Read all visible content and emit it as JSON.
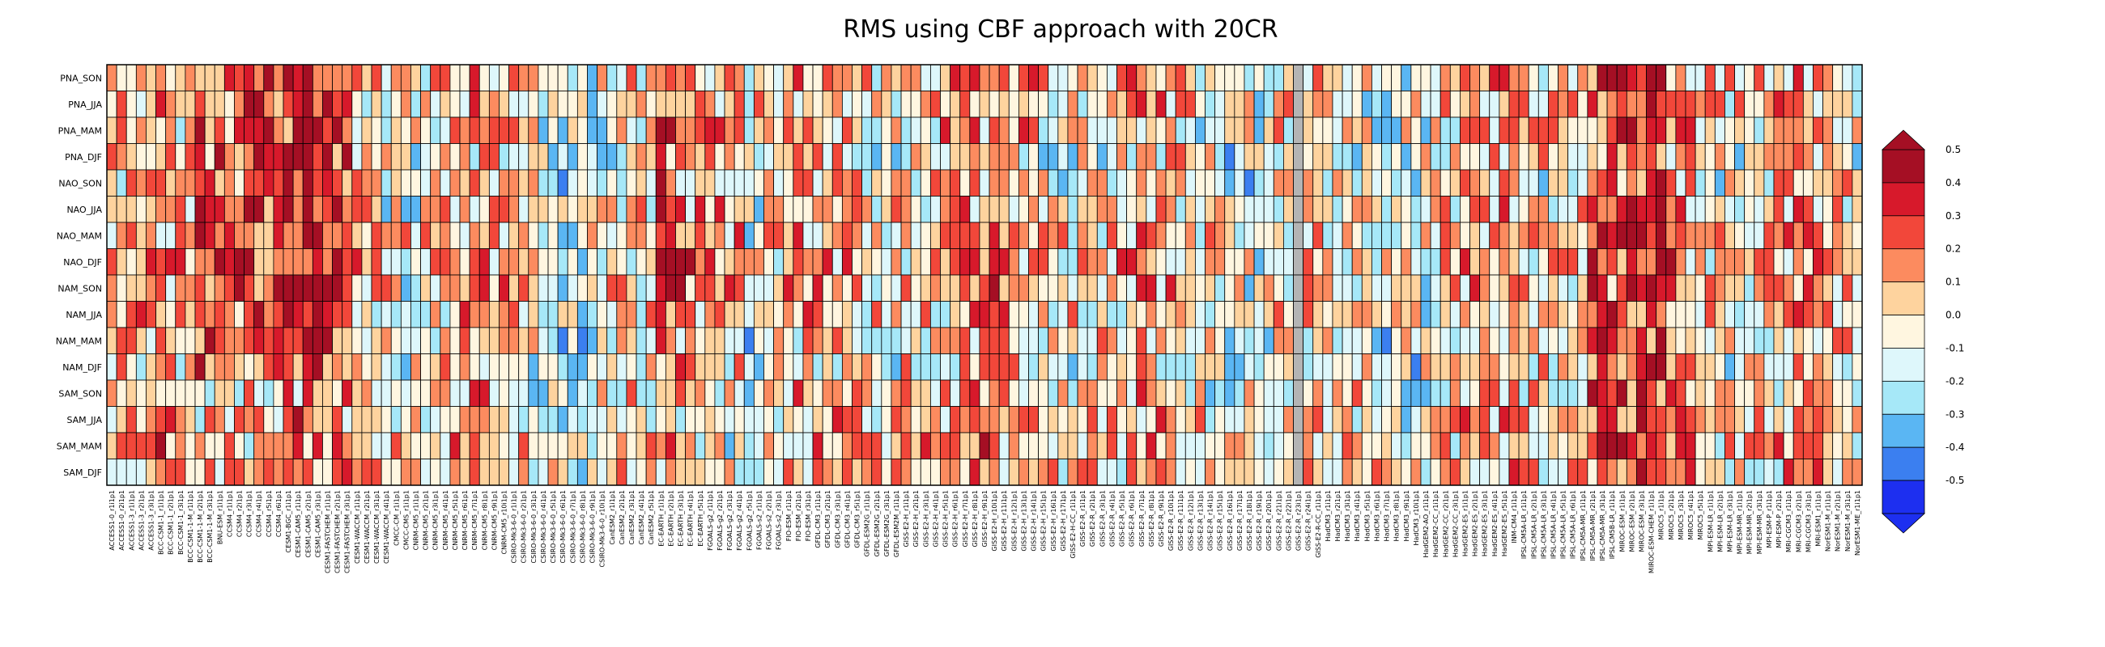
{
  "chart_data": {
    "type": "heatmap",
    "title": "RMS using CBF approach with 20CR",
    "rows": [
      "PNA_SON",
      "PNA_JJA",
      "PNA_MAM",
      "PNA_DJF",
      "NAO_SON",
      "NAO_JJA",
      "NAO_MAM",
      "NAO_DJF",
      "NAM_SON",
      "NAM_JJA",
      "NAM_MAM",
      "NAM_DJF",
      "SAM_SON",
      "SAM_JJA",
      "SAM_MAM",
      "SAM_DJF"
    ],
    "column_groups": [
      {
        "prefix": "ACCESS1-0_",
        "n": 2
      },
      {
        "prefix": "ACCESS1-3_",
        "n": 3
      },
      {
        "prefix": "BCC-CSM1-1_",
        "n": 3
      },
      {
        "prefix": "BCC-CSM1-1-M_",
        "n": 3
      },
      {
        "prefix": "BNU-ESM_",
        "n": 1
      },
      {
        "prefix": "CCSM4_",
        "n": 6
      },
      {
        "prefix": "CESM1-BGC_",
        "n": 1
      },
      {
        "prefix": "CESM1-CAM5_",
        "n": 3
      },
      {
        "prefix": "CESM1-FASTCHEM_",
        "n": 3
      },
      {
        "prefix": "CESM1-WACCM_",
        "n": 4
      },
      {
        "prefix": "CMCC-CM_",
        "n": 1
      },
      {
        "prefix": "CMCC-CMS_",
        "n": 1
      },
      {
        "prefix": "CNRM-CM5_",
        "n": 10
      },
      {
        "prefix": "CSIRO-Mk3-6-0_",
        "n": 10
      },
      {
        "prefix": "CanESM2_",
        "n": 5
      },
      {
        "prefix": "EC-EARTH_",
        "n": 5
      },
      {
        "prefix": "FGOALS-g2_",
        "n": 5
      },
      {
        "prefix": "FGOALS-s2_",
        "n": 3
      },
      {
        "prefix": "FIO-ESM_",
        "n": 3
      },
      {
        "prefix": "GFDL-CM3_",
        "n": 5
      },
      {
        "prefix": "GFDL-ESM2G_",
        "n": 3
      },
      {
        "prefix": "GFDL-ESM2M_",
        "n": 1
      },
      {
        "prefix": "GISS-E2-H_",
        "n": 17
      },
      {
        "prefix": "GISS-E2-H-CC_",
        "n": 1
      },
      {
        "prefix": "GISS-E2-R_",
        "n": 24
      },
      {
        "prefix": "GISS-E2-R-CC_",
        "n": 1
      },
      {
        "prefix": "HadCM3_",
        "n": 10
      },
      {
        "prefix": "HadGEM2-AO_",
        "n": 1
      },
      {
        "prefix": "HadGEM2-CC_",
        "n": 3
      },
      {
        "prefix": "HadGEM2-ES_",
        "n": 5
      },
      {
        "prefix": "INM-CM4_",
        "n": 1
      },
      {
        "prefix": "IPSL-CM5A-LR_",
        "n": 6
      },
      {
        "prefix": "IPSL-CM5A-MR_",
        "n": 3
      },
      {
        "prefix": "IPSL-CM5B-LR_",
        "n": 1
      },
      {
        "prefix": "MIROC-ESM_",
        "n": 3
      },
      {
        "prefix": "MIROC-ESM-CHEM_",
        "n": 1
      },
      {
        "prefix": "MIROC5_",
        "n": 5
      },
      {
        "prefix": "MPI-ESM-LR_",
        "n": 3
      },
      {
        "prefix": "MPI-ESM-MR_",
        "n": 3
      },
      {
        "prefix": "MPI-ESM-P_",
        "n": 2
      },
      {
        "prefix": "MRI-CGCM3_",
        "n": 3
      },
      {
        "prefix": "MRI-ESM1_",
        "n": 1
      },
      {
        "prefix": "NorESM1-M_",
        "n": 3
      },
      {
        "prefix": "NorESM1-ME_",
        "n": 1
      }
    ],
    "colorbar": {
      "ticks": [
        "0.5",
        "0.4",
        "0.3",
        "0.2",
        "0.1",
        "0.0",
        "-0.1",
        "-0.2",
        "-0.3",
        "-0.4",
        "-0.5"
      ],
      "colors": [
        "#a50f24",
        "#d7192b",
        "#f2473a",
        "#fc8b5f",
        "#fed39e",
        "#fff6e0",
        "#def7fb",
        "#a6e8f8",
        "#5ab6f3",
        "#3b7ff0",
        "#1d2ff0"
      ],
      "missing_color": "#b4b4b4"
    }
  }
}
